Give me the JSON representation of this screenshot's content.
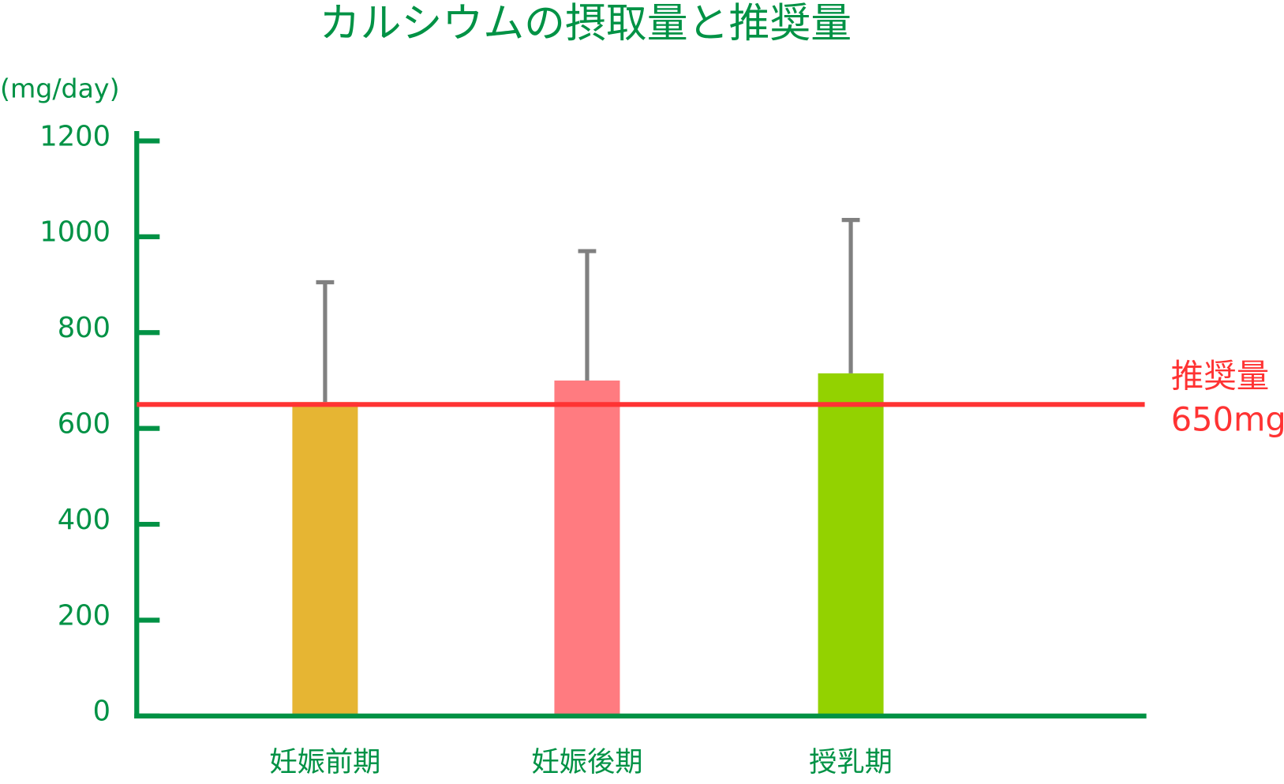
{
  "chart_data": {
    "type": "bar",
    "title": "カルシウムの摂取量と推奨量",
    "y_label": "(mg/day)",
    "categories": [
      "妊娠前期",
      "妊娠後期",
      "授乳期"
    ],
    "values": [
      655,
      700,
      715
    ],
    "errors": [
      250,
      270,
      320
    ],
    "colors": [
      "#e6b533",
      "#ff7b80",
      "#93d200"
    ],
    "error_color": "#808080",
    "axis_color": "#009245",
    "ylim": [
      0,
      1200
    ],
    "yticks": [
      0,
      200,
      400,
      600,
      800,
      1000,
      1200
    ],
    "reference_line": {
      "value": 650,
      "label": "推奨量",
      "value_label": "650mg",
      "color": "#ff3333"
    }
  }
}
